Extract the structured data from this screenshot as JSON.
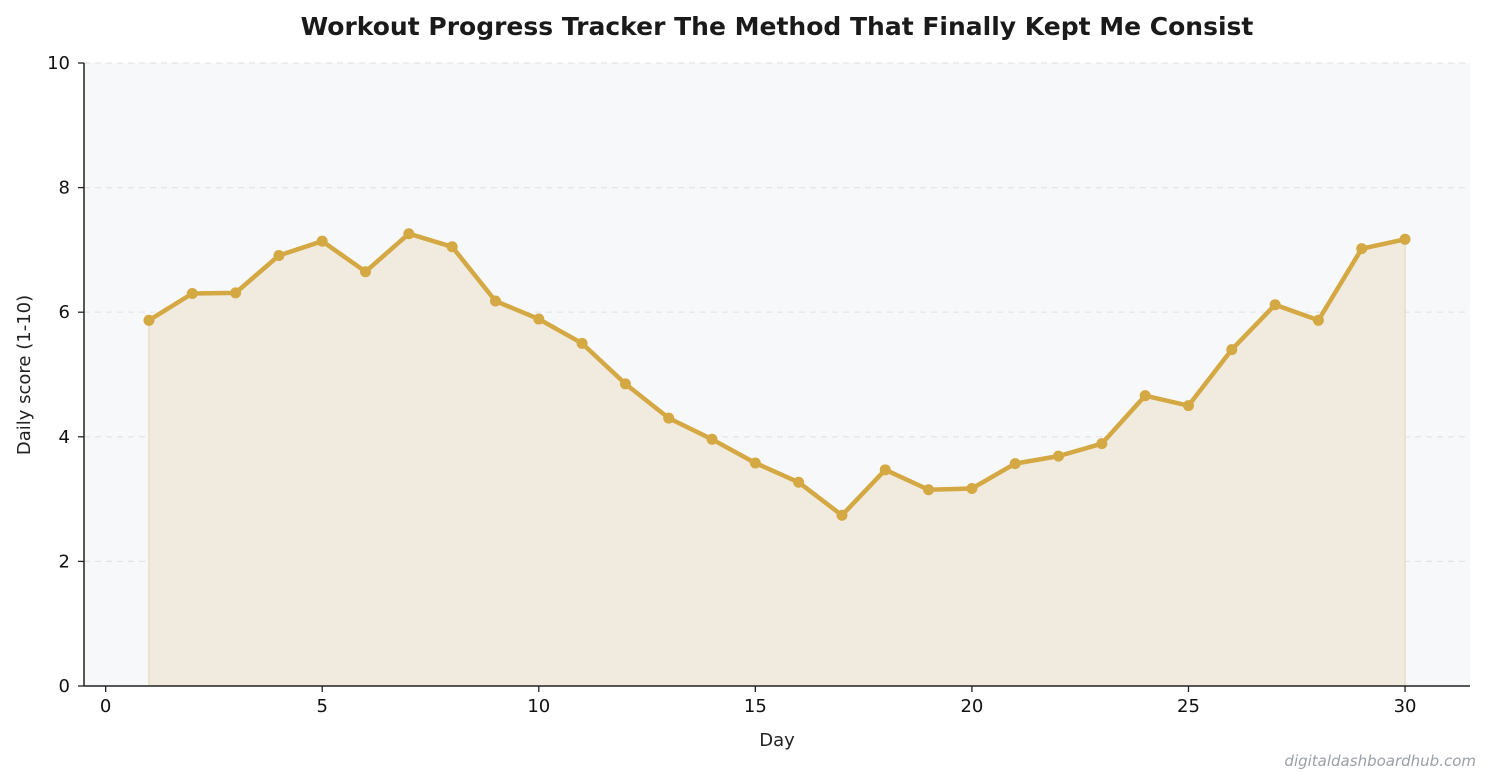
{
  "chart_data": {
    "type": "line",
    "title": "Workout Progress Tracker  The Method That Finally Kept Me Consist",
    "xlabel": "Day",
    "ylabel": "Daily score (1-10)",
    "xlim": [
      -0.5,
      31.5
    ],
    "ylim": [
      0,
      10
    ],
    "xticks": [
      0,
      5,
      10,
      15,
      20,
      25,
      30
    ],
    "yticks": [
      0,
      2,
      4,
      6,
      8,
      10
    ],
    "grid": "y-dashed",
    "filled_area": true,
    "series": [
      {
        "x": [
          1,
          2,
          3,
          4,
          5,
          6,
          7,
          8,
          9,
          10,
          11,
          12,
          13,
          14,
          15,
          16,
          17,
          18,
          19,
          20,
          21,
          22,
          23,
          24,
          25,
          26,
          27,
          28,
          29,
          30
        ],
        "values": [
          5.87,
          6.3,
          6.31,
          6.91,
          7.14,
          6.65,
          7.26,
          7.05,
          6.18,
          5.89,
          5.5,
          4.85,
          4.3,
          3.96,
          3.58,
          3.27,
          2.74,
          3.47,
          3.15,
          3.17,
          3.57,
          3.69,
          3.89,
          4.66,
          4.5,
          5.4,
          6.12,
          5.87,
          7.02,
          7.17
        ]
      }
    ],
    "colors": {
      "line": "#d4a843",
      "fill": "#f1ebdf",
      "plot_background": "#f7f8fa",
      "grid": "#e2e4e8",
      "axis": "#222222"
    }
  },
  "watermark": "digitaldashboardhub.com"
}
